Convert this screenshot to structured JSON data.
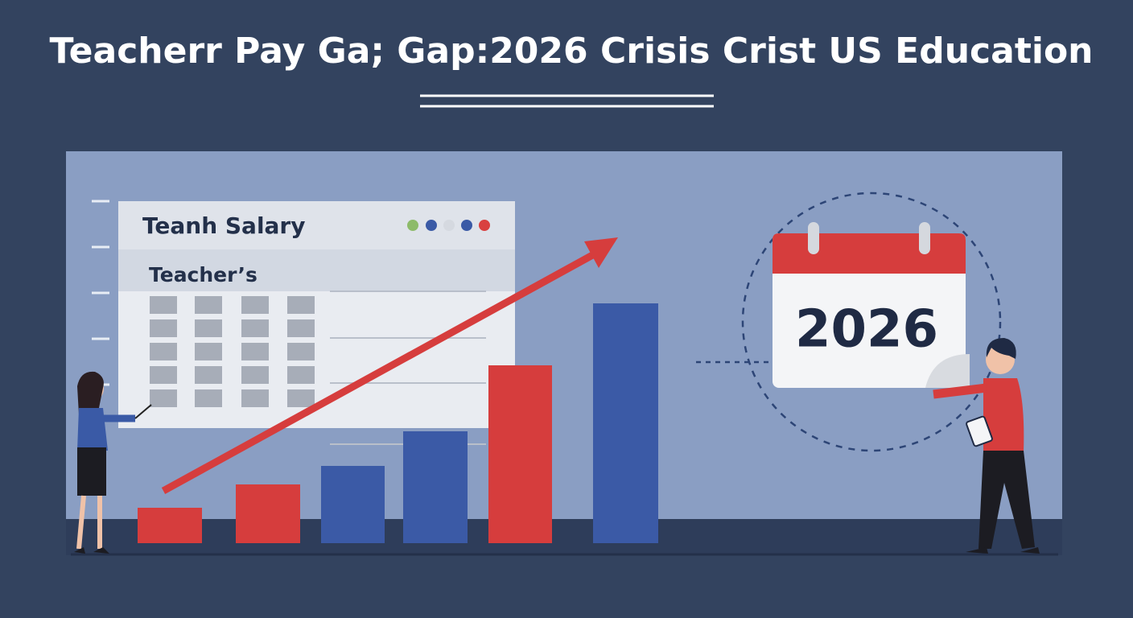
{
  "header": {
    "title": "Teacherr Pay Ga; Gap:2026 Crisis Crist US Education"
  },
  "spreadsheet": {
    "title": "Teanh Salary",
    "subtitle": "Teacher’s"
  },
  "calendar": {
    "year": "2026"
  }
}
